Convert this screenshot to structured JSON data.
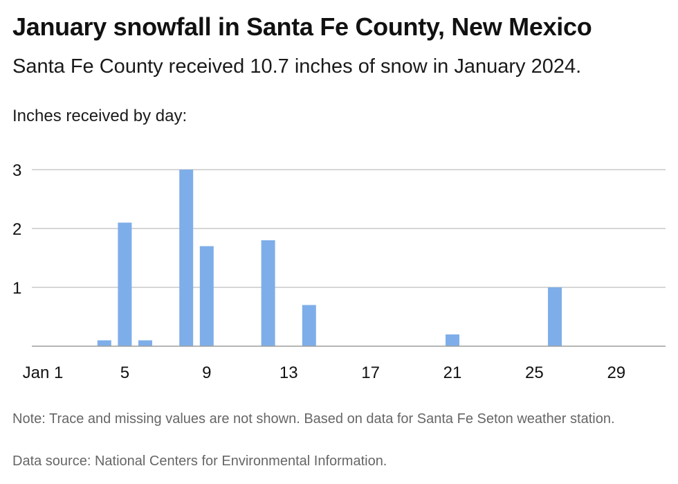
{
  "header": {
    "title": "January snowfall in Santa Fe County, New Mexico",
    "subtitle": "Santa Fe County received 10.7 inches of snow in January 2024."
  },
  "footer": {
    "note": "Note: Trace and missing values are not shown. Based on data for Santa Fe Seton weather station.",
    "source": "Data source: National Centers for Environmental Information."
  },
  "colors": {
    "bar": "#7eaeea",
    "grid": "#bdbdbd",
    "baseline": "#9e9e9e"
  },
  "chart_data": {
    "type": "bar",
    "title": "January snowfall in Santa Fe County, New Mexico",
    "subtitle": "Santa Fe County received 10.7 inches of snow in January 2024.",
    "ylabel": "Inches received by day:",
    "xlabel": "",
    "x_tick_labels": [
      "Jan 1",
      "5",
      "9",
      "13",
      "17",
      "21",
      "25",
      "29"
    ],
    "x_tick_values": [
      1,
      5,
      9,
      13,
      17,
      21,
      25,
      29
    ],
    "y_ticks": [
      1,
      2,
      3
    ],
    "xlim": [
      1,
      31
    ],
    "ylim": [
      0,
      3
    ],
    "grid": true,
    "x": [
      4,
      5,
      6,
      8,
      9,
      12,
      14,
      21,
      26
    ],
    "values": [
      0.1,
      2.1,
      0.1,
      3.0,
      1.7,
      1.8,
      0.7,
      0.2,
      1.0
    ]
  }
}
